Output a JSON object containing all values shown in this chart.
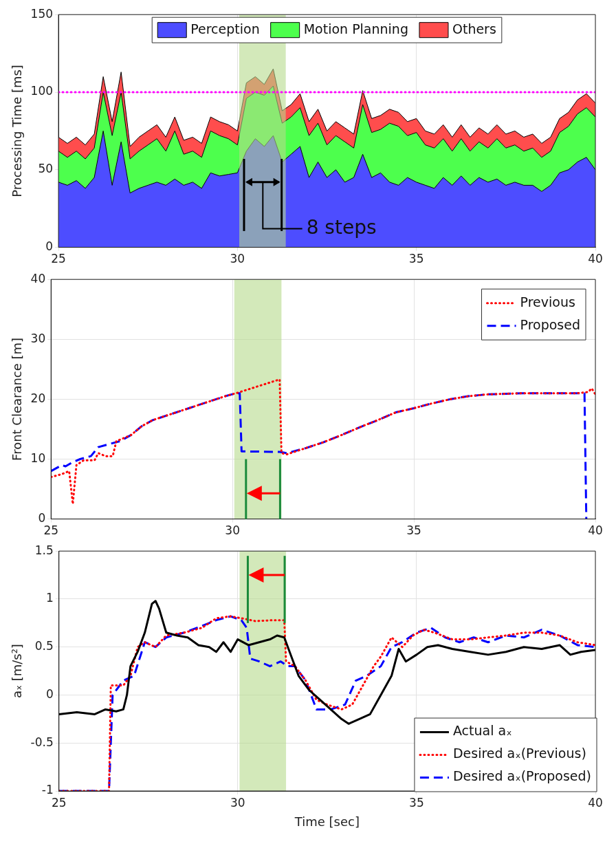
{
  "chart_data": [
    {
      "type": "area",
      "stacked": true,
      "ylabel": "Processing Time [ms]",
      "xlim": [
        25,
        40
      ],
      "xticks": [
        25,
        30,
        35,
        40
      ],
      "ylim": [
        0,
        150
      ],
      "yticks": [
        0,
        50,
        100,
        150
      ],
      "grid": true,
      "legend": "top",
      "x": [
        25,
        25.25,
        25.5,
        25.75,
        26,
        26.25,
        26.5,
        26.75,
        27,
        27.25,
        27.5,
        27.75,
        28,
        28.25,
        28.5,
        28.75,
        29,
        29.25,
        29.5,
        29.75,
        30,
        30.25,
        30.5,
        30.75,
        31,
        31.25,
        31.5,
        31.75,
        32,
        32.25,
        32.5,
        32.75,
        33,
        33.25,
        33.5,
        33.75,
        34,
        34.25,
        34.5,
        34.75,
        35,
        35.25,
        35.5,
        35.75,
        36,
        36.25,
        36.5,
        36.75,
        37,
        37.25,
        37.5,
        37.75,
        38,
        38.25,
        38.5,
        38.75,
        39,
        39.25,
        39.5,
        39.75,
        40
      ],
      "series": [
        {
          "name": "Perception",
          "color": "#4d4dff",
          "values": [
            42,
            40,
            43,
            38,
            45,
            75,
            40,
            68,
            35,
            38,
            40,
            42,
            40,
            44,
            40,
            42,
            38,
            48,
            46,
            47,
            48,
            62,
            70,
            65,
            72,
            55,
            60,
            65,
            45,
            55,
            45,
            50,
            42,
            45,
            60,
            45,
            48,
            42,
            40,
            45,
            42,
            40,
            38,
            45,
            40,
            46,
            40,
            45,
            42,
            44,
            40,
            42,
            40,
            40,
            36,
            40,
            48,
            50,
            55,
            58,
            50
          ]
        },
        {
          "name": "Motion Planning",
          "color": "#4dff4d",
          "values": [
            20,
            18,
            19,
            19,
            19,
            25,
            32,
            32,
            22,
            24,
            26,
            28,
            22,
            31,
            20,
            20,
            20,
            27,
            26,
            23,
            18,
            34,
            30,
            33,
            32,
            25,
            24,
            25,
            27,
            25,
            21,
            22,
            26,
            19,
            32,
            29,
            28,
            38,
            38,
            27,
            32,
            26,
            26,
            25,
            22,
            24,
            22,
            23,
            22,
            26,
            24,
            24,
            22,
            24,
            22,
            22,
            26,
            28,
            31,
            32,
            34
          ]
        },
        {
          "name": "Others",
          "color": "#ff4d4d",
          "values": [
            9,
            9,
            9,
            9,
            9,
            10,
            9,
            13,
            8,
            9,
            9,
            9,
            9,
            9,
            9,
            9,
            9,
            9,
            9,
            9,
            9,
            10,
            10,
            7,
            11,
            8,
            8,
            9,
            9,
            9,
            9,
            9,
            9,
            9,
            9,
            9,
            9,
            9,
            9,
            9,
            9,
            9,
            9,
            9,
            9,
            9,
            9,
            9,
            9,
            9,
            9,
            9,
            9,
            9,
            9,
            9,
            9,
            9,
            9,
            9,
            9
          ]
        }
      ],
      "ref_lines": [
        {
          "axis": "y",
          "value": 100,
          "color": "#ff00ff",
          "line_style": "dotted"
        }
      ],
      "bands": [
        {
          "axis": "x",
          "from": 30.05,
          "to": 31.35,
          "color": "#b5da8c"
        }
      ],
      "annotations": [
        {
          "text": "8 steps",
          "x": 31.35,
          "y": 12
        }
      ]
    },
    {
      "type": "line",
      "ylabel": "Front Clearance [m]",
      "xlim": [
        25,
        40
      ],
      "xticks": [
        25,
        30,
        35,
        40
      ],
      "ylim": [
        0,
        40
      ],
      "yticks": [
        0,
        10,
        20,
        30,
        40
      ],
      "grid": true,
      "legend": "top right",
      "series": [
        {
          "name": "Previous",
          "color": "#ff0000",
          "line_style": "dotted",
          "x": [
            25,
            25.3,
            25.5,
            25.6,
            25.7,
            25.9,
            26.2,
            26.3,
            26.5,
            26.7,
            26.8,
            27.2,
            27.5,
            27.8,
            28.3,
            28.8,
            29.3,
            29.8,
            30.1,
            31.3,
            31.35,
            31.5,
            32,
            32.5,
            33,
            33.5,
            34,
            34.5,
            35,
            35.5,
            36,
            36.5,
            37,
            38,
            38.5,
            39.5,
            39.8,
            39.9,
            40
          ],
          "values": [
            7,
            7.5,
            8,
            2.5,
            9,
            9.8,
            9.8,
            11,
            10.5,
            10.5,
            13,
            14,
            15.5,
            16.5,
            17.5,
            18.5,
            19.5,
            20.5,
            21,
            23.3,
            11,
            10.8,
            11.8,
            12.8,
            14,
            15.3,
            16.5,
            17.8,
            18.5,
            19.3,
            20,
            20.5,
            20.8,
            21,
            21,
            21,
            21.2,
            21.8,
            20.8
          ]
        },
        {
          "name": "Proposed",
          "color": "#0000ff",
          "line_style": "dashed",
          "x": [
            25,
            25.3,
            25.4,
            25.6,
            25.8,
            26.1,
            26.3,
            26.6,
            26.9,
            27.2,
            27.5,
            27.8,
            28.3,
            28.8,
            29.3,
            29.8,
            30.1,
            30.2,
            30.25,
            31.3,
            31.5,
            32,
            32.5,
            33,
            33.5,
            34,
            34.5,
            35,
            35.5,
            36,
            36.5,
            37,
            38,
            38.5,
            39.5,
            39.7,
            39.75
          ],
          "values": [
            8,
            9,
            8.8,
            9.5,
            10,
            10.5,
            12,
            12.5,
            13,
            14,
            15.5,
            16.5,
            17.5,
            18.5,
            19.5,
            20.5,
            21,
            21,
            11.3,
            11.2,
            11,
            11.8,
            12.8,
            14,
            15.3,
            16.5,
            17.8,
            18.5,
            19.3,
            20,
            20.5,
            20.8,
            21,
            21,
            21,
            21,
            0
          ]
        }
      ],
      "bands": [
        {
          "axis": "x",
          "from": 30.05,
          "to": 31.35,
          "color": "#b5da8c"
        }
      ]
    },
    {
      "type": "line",
      "xlabel": "Time [sec]",
      "ylabel": "aₓ [m/s²]",
      "xlim": [
        25,
        40
      ],
      "xticks": [
        25,
        30,
        35,
        40
      ],
      "ylim": [
        -1,
        1.5
      ],
      "yticks": [
        -1,
        -0.5,
        0,
        0.5,
        1,
        1.5
      ],
      "grid": true,
      "legend": "bottom right",
      "series": [
        {
          "name": "Actual aₓ",
          "color": "#000000",
          "line_style": "solid",
          "x": [
            25,
            25.5,
            26,
            26.3,
            26.6,
            26.8,
            26.9,
            27,
            27.2,
            27.4,
            27.6,
            27.7,
            27.8,
            28,
            28.3,
            28.6,
            28.9,
            29.2,
            29.4,
            29.6,
            29.8,
            30,
            30.3,
            30.6,
            30.9,
            31.1,
            31.3,
            31.5,
            31.7,
            32,
            32.3,
            32.6,
            32.9,
            33.1,
            33.4,
            33.7,
            34,
            34.3,
            34.5,
            34.7,
            35,
            35.3,
            35.6,
            36,
            36.5,
            37,
            37.5,
            38,
            38.5,
            39,
            39.3,
            39.6,
            40
          ],
          "values": [
            -0.2,
            -0.18,
            -0.2,
            -0.15,
            -0.17,
            -0.15,
            0,
            0.3,
            0.45,
            0.65,
            0.95,
            0.98,
            0.9,
            0.65,
            0.62,
            0.6,
            0.52,
            0.5,
            0.45,
            0.55,
            0.45,
            0.58,
            0.52,
            0.55,
            0.58,
            0.62,
            0.6,
            0.4,
            0.2,
            0.05,
            -0.05,
            -0.15,
            -0.25,
            -0.3,
            -0.25,
            -0.2,
            0,
            0.2,
            0.48,
            0.35,
            0.42,
            0.5,
            0.52,
            0.48,
            0.45,
            0.42,
            0.45,
            0.5,
            0.48,
            0.52,
            0.42,
            0.45,
            0.47
          ]
        },
        {
          "name": "Desired aₓ(Previous)",
          "color": "#ff0000",
          "line_style": "dotted",
          "x": [
            25,
            26.4,
            26.45,
            26.8,
            27,
            27.2,
            27.4,
            27.7,
            28,
            28.5,
            29,
            29.4,
            29.8,
            30.1,
            30.5,
            31,
            31.3,
            31.35,
            31.6,
            31.9,
            32.2,
            32.5,
            32.9,
            33.2,
            33.5,
            33.8,
            34,
            34.3,
            34.6,
            34.9,
            35.2,
            35.5,
            36,
            36.5,
            37,
            37.5,
            38,
            38.5,
            39,
            39.5,
            40
          ],
          "values": [
            -1,
            -1,
            0.1,
            0.1,
            0.2,
            0.5,
            0.55,
            0.5,
            0.62,
            0.65,
            0.7,
            0.8,
            0.82,
            0.8,
            0.77,
            0.78,
            0.78,
            0.35,
            0.3,
            0.15,
            -0.05,
            -0.1,
            -0.15,
            -0.1,
            0.1,
            0.3,
            0.4,
            0.6,
            0.5,
            0.62,
            0.68,
            0.65,
            0.58,
            0.58,
            0.6,
            0.62,
            0.65,
            0.65,
            0.62,
            0.55,
            0.52
          ]
        },
        {
          "name": "Desired aₓ(Proposed)",
          "color": "#0000ff",
          "line_style": "dashed",
          "x": [
            25,
            26.4,
            26.5,
            26.8,
            27.1,
            27.4,
            27.7,
            28,
            28.5,
            29,
            29.4,
            29.8,
            30.1,
            30.25,
            30.35,
            30.6,
            30.9,
            31.2,
            31.4,
            31.6,
            31.9,
            32.2,
            32.6,
            33,
            33.3,
            33.6,
            34,
            34.3,
            34.6,
            35,
            35.4,
            35.8,
            36.2,
            36.6,
            37,
            37.5,
            38,
            38.5,
            39,
            39.5,
            40
          ],
          "values": [
            -1,
            -1,
            0,
            0.15,
            0.2,
            0.55,
            0.5,
            0.6,
            0.65,
            0.72,
            0.78,
            0.82,
            0.78,
            0.7,
            0.38,
            0.35,
            0.3,
            0.35,
            0.3,
            0.3,
            0.15,
            -0.15,
            -0.15,
            -0.1,
            0.15,
            0.2,
            0.3,
            0.5,
            0.55,
            0.65,
            0.7,
            0.6,
            0.55,
            0.6,
            0.55,
            0.62,
            0.6,
            0.68,
            0.62,
            0.52,
            0.5
          ]
        }
      ],
      "bands": [
        {
          "axis": "x",
          "from": 30.05,
          "to": 31.35,
          "color": "#b5da8c"
        }
      ]
    }
  ]
}
